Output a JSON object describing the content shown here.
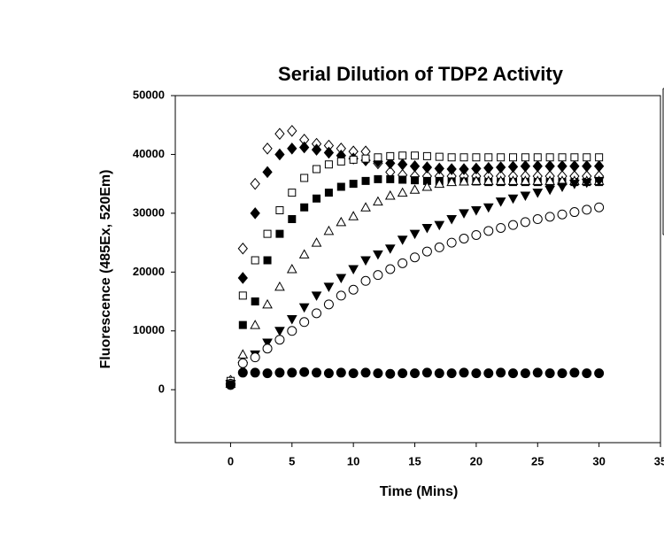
{
  "chart_data": {
    "type": "scatter",
    "title": "Serial Dilution of TDP2 Activity",
    "xlabel": "Time (Mins)",
    "ylabel": "Fluorescence (485Ex, 520Em)",
    "xlim": [
      -4.5,
      35
    ],
    "xticks": [
      0,
      5,
      10,
      15,
      20,
      25,
      30,
      35
    ],
    "ylim": [
      -9000,
      50000
    ],
    "yticks": [
      0,
      10000,
      20000,
      30000,
      40000,
      50000
    ],
    "x": [
      0,
      1,
      2,
      3,
      4,
      5,
      6,
      7,
      8,
      9,
      10,
      11,
      12,
      13,
      14,
      15,
      16,
      17,
      18,
      19,
      20,
      21,
      22,
      23,
      24,
      25,
      26,
      27,
      28,
      29,
      30
    ],
    "series": [
      {
        "marker": "diamond",
        "filled": false,
        "color": "#000000",
        "values": [
          1500,
          24000,
          35000,
          41000,
          43500,
          44000,
          42500,
          41800,
          41500,
          41000,
          40500,
          40500,
          38500,
          37000,
          36500,
          36300,
          36300,
          36300,
          36300,
          36300,
          36300,
          36300,
          36300,
          36300,
          36300,
          36300,
          36300,
          36300,
          36300,
          36300,
          36300
        ]
      },
      {
        "marker": "diamond",
        "filled": true,
        "color": "#000000",
        "values": [
          1000,
          19000,
          30000,
          37000,
          40000,
          41000,
          41200,
          40800,
          40300,
          39800,
          39300,
          39000,
          38800,
          38500,
          38300,
          38000,
          37800,
          37600,
          37500,
          37500,
          37600,
          37700,
          37800,
          37900,
          38000,
          38000,
          38000,
          38000,
          38000,
          38000,
          38000
        ]
      },
      {
        "marker": "square",
        "filled": false,
        "color": "#000000",
        "values": [
          1500,
          16000,
          22000,
          26500,
          30500,
          33500,
          36000,
          37500,
          38300,
          38800,
          39100,
          39300,
          39500,
          39700,
          39800,
          39800,
          39700,
          39600,
          39500,
          39500,
          39500,
          39500,
          39500,
          39500,
          39500,
          39500,
          39500,
          39500,
          39500,
          39500,
          39500
        ]
      },
      {
        "marker": "square",
        "filled": true,
        "color": "#000000",
        "values": [
          1000,
          11000,
          15000,
          22000,
          26500,
          29000,
          31000,
          32500,
          33500,
          34500,
          35000,
          35500,
          35800,
          35800,
          35700,
          35600,
          35500,
          35500,
          35400,
          35400,
          35400,
          35300,
          35300,
          35300,
          35300,
          35300,
          35300,
          35300,
          35300,
          35300,
          35300
        ]
      },
      {
        "marker": "triangle-up",
        "filled": false,
        "color": "#000000",
        "values": [
          1000,
          6000,
          11000,
          14500,
          17500,
          20500,
          23000,
          25000,
          27000,
          28500,
          29500,
          31000,
          32000,
          33000,
          33500,
          34000,
          34500,
          35000,
          35300,
          35400,
          35500,
          35500,
          35500,
          35500,
          35500,
          35500,
          35500,
          35500,
          35500,
          35500,
          35500
        ]
      },
      {
        "marker": "triangle-down",
        "filled": true,
        "color": "#000000",
        "values": [
          1000,
          4000,
          6000,
          8000,
          10000,
          12000,
          14000,
          16000,
          17500,
          19000,
          20500,
          22000,
          23000,
          24000,
          25500,
          26500,
          27500,
          28000,
          29000,
          30000,
          30500,
          31000,
          32000,
          32500,
          33000,
          33500,
          34000,
          34500,
          35000,
          35200,
          35500
        ]
      },
      {
        "marker": "circle",
        "filled": false,
        "color": "#000000",
        "values": [
          1000,
          4500,
          5500,
          7000,
          8500,
          10000,
          11500,
          13000,
          14500,
          16000,
          17000,
          18500,
          19500,
          20500,
          21500,
          22500,
          23500,
          24200,
          25000,
          25700,
          26300,
          27000,
          27500,
          28000,
          28500,
          29000,
          29400,
          29800,
          30200,
          30600,
          31000
        ]
      },
      {
        "marker": "circle",
        "filled": true,
        "color": "#000000",
        "values": [
          800,
          2900,
          2900,
          2800,
          2900,
          2900,
          3000,
          2900,
          2800,
          2900,
          2800,
          2900,
          2800,
          2700,
          2800,
          2800,
          2900,
          2800,
          2800,
          2900,
          2800,
          2800,
          2900,
          2800,
          2800,
          2900,
          2800,
          2800,
          2900,
          2800,
          2800
        ]
      }
    ]
  }
}
